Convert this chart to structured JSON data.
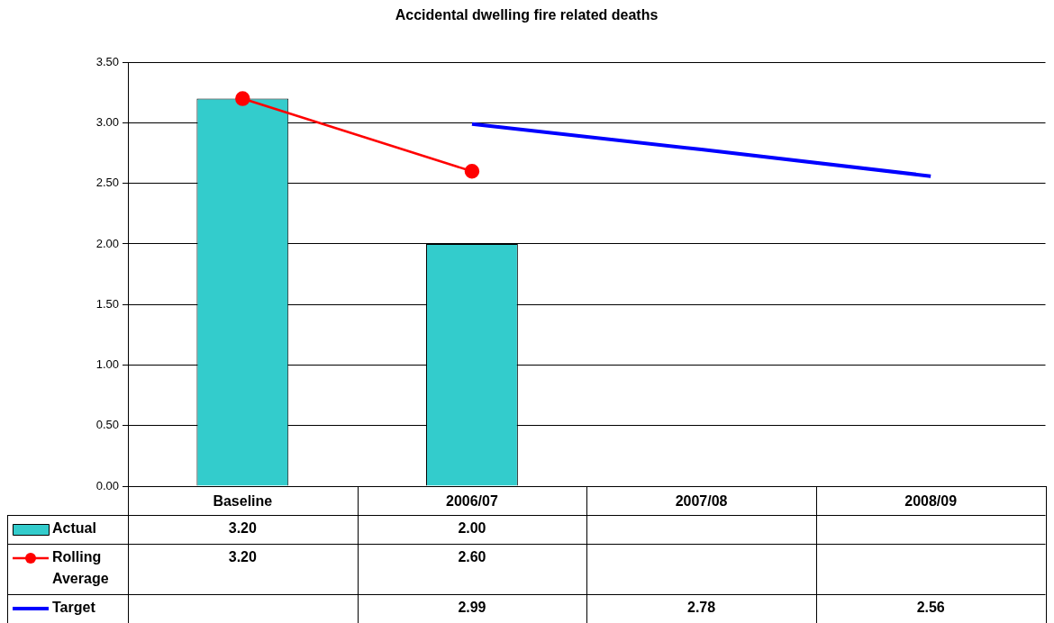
{
  "chart_data": {
    "type": "bar",
    "title": "Accidental dwelling fire related deaths",
    "categories": [
      "Baseline",
      "2006/07",
      "2007/08",
      "2008/09"
    ],
    "series": [
      {
        "name": "Actual",
        "color": "#33cccc",
        "values": [
          3.2,
          2.0,
          null,
          null
        ],
        "value_labels": [
          "3.20",
          "2.00",
          null,
          null
        ]
      },
      {
        "name": "Rolling Average",
        "type": "line",
        "color": "#ff0000",
        "marker": "circle",
        "line_style": "solid",
        "values": [
          3.2,
          2.6,
          null,
          null
        ],
        "value_labels": [
          "3.20",
          "2.60",
          null,
          null
        ]
      },
      {
        "name": "Target",
        "type": "line",
        "color": "#0000ff",
        "marker": "none",
        "line_style": "solid",
        "values": [
          null,
          2.99,
          2.78,
          2.56
        ],
        "value_labels": [
          null,
          "2.99",
          "2.78",
          "2.56"
        ]
      }
    ],
    "ylim": [
      0,
      3.5
    ],
    "yticks": [
      {
        "value": 0,
        "label": "0.00"
      },
      {
        "value": 0.5,
        "label": "0.50"
      },
      {
        "value": 1,
        "label": "1.00"
      },
      {
        "value": 1.5,
        "label": "1.50"
      },
      {
        "value": 2,
        "label": "2.00"
      },
      {
        "value": 2.5,
        "label": "2.50"
      },
      {
        "value": 3,
        "label": "3.00"
      },
      {
        "value": 3.5,
        "label": "3.50"
      }
    ],
    "grid": "y",
    "legend": "bottom"
  }
}
